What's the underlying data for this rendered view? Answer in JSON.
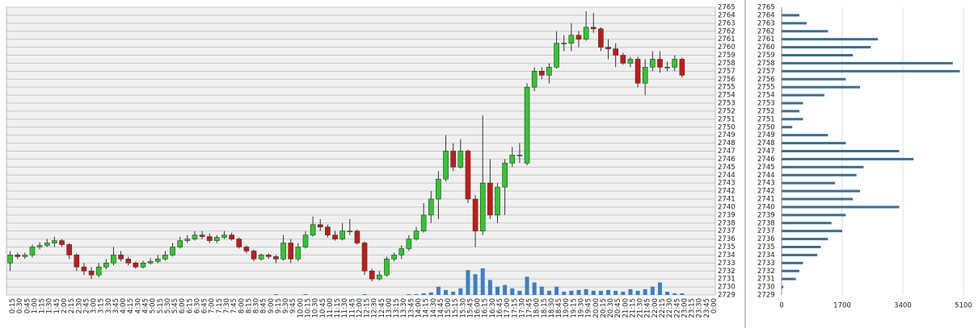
{
  "chart_data": [
    {
      "type": "candlestick",
      "categories": [
        "0:15",
        "0:30",
        "0:45",
        "1:00",
        "1:15",
        "1:30",
        "1:45",
        "2:00",
        "2:15",
        "2:30",
        "2:45",
        "3:00",
        "3:15",
        "3:30",
        "3:45",
        "4:00",
        "4:15",
        "4:30",
        "4:45",
        "5:00",
        "5:15",
        "5:30",
        "5:45",
        "6:00",
        "6:15",
        "6:30",
        "6:45",
        "7:00",
        "7:15",
        "7:30",
        "7:45",
        "8:00",
        "8:15",
        "8:30",
        "8:45",
        "9:00",
        "9:15",
        "9:30",
        "9:45",
        "10:00",
        "10:15",
        "10:30",
        "10:45",
        "11:00",
        "11:15",
        "11:30",
        "11:45",
        "12:00",
        "12:15",
        "12:30",
        "12:45",
        "13:00",
        "13:15",
        "13:30",
        "13:45",
        "14:00",
        "14:15",
        "14:30",
        "14:45",
        "15:00",
        "15:15",
        "15:30",
        "15:45",
        "16:00",
        "16:15",
        "16:30",
        "16:45",
        "17:00",
        "17:15",
        "17:30",
        "17:45",
        "18:00",
        "18:15",
        "18:30",
        "18:45",
        "19:00",
        "19:15",
        "19:30",
        "19:45",
        "20:00",
        "20:15",
        "20:30",
        "20:45",
        "21:00",
        "21:15",
        "21:30",
        "21:45",
        "22:00",
        "22:15",
        "22:30",
        "22:45",
        "23:00",
        "23:15",
        "23:30",
        "23:45",
        "0:00"
      ],
      "open": [
        2733,
        2734,
        2733.8,
        2734,
        2735,
        2735.2,
        2735.5,
        2735.8,
        2735.3,
        2734,
        2732.5,
        2732,
        2731.5,
        2732.5,
        2733,
        2734,
        2733.5,
        2733,
        2732.5,
        2733,
        2733.2,
        2733.5,
        2734,
        2735,
        2735.8,
        2736,
        2736.5,
        2736.3,
        2735.8,
        2736.2,
        2736.5,
        2736,
        2735,
        2734.5,
        2733.5,
        2734,
        2733.8,
        2733.5,
        2735.5,
        2733.5,
        2735,
        2736.5,
        2737.8,
        2737.5,
        2736.5,
        2736,
        2737,
        2737,
        2735.5,
        2732,
        2731,
        2731.5,
        2733.5,
        2734,
        2734.8,
        2736,
        2737,
        2739,
        2741,
        2743.5,
        2747,
        2745,
        2747,
        2741,
        2737,
        2743,
        2739,
        2742.5,
        2745.5,
        2746.5,
        2745.5,
        2755,
        2757,
        2756.5,
        2757.5,
        2760.5,
        2760.5,
        2761.5,
        2761,
        2762.5,
        2762.3,
        2760,
        2759.8,
        2759,
        2758,
        2758.5,
        2755.5,
        2757.5,
        2758.5,
        2757.5,
        2757.5,
        2758.5,
        null,
        null,
        null,
        null
      ],
      "high": [
        2734.5,
        2734.3,
        2734.3,
        2735.3,
        2735.6,
        2736,
        2736.3,
        2736,
        2735.5,
        2734.2,
        2733,
        2732.5,
        2733,
        2733.5,
        2735,
        2734.5,
        2733.8,
        2733.2,
        2733.3,
        2733.6,
        2734,
        2734.5,
        2735.5,
        2736.3,
        2736.5,
        2737,
        2737,
        2736.7,
        2736.5,
        2737,
        2736.8,
        2736.2,
        2735.2,
        2734.7,
        2734.2,
        2734.2,
        2734,
        2736.5,
        2736,
        2735.5,
        2737,
        2738.8,
        2738.5,
        2737.8,
        2737,
        2738,
        2738.5,
        2737.2,
        2735.7,
        2732.3,
        2732,
        2733.8,
        2734.3,
        2735.2,
        2736.5,
        2737.5,
        2740.5,
        2742,
        2744.5,
        2749,
        2748,
        2748.5,
        2747.2,
        2741.5,
        2751.5,
        2746,
        2743,
        2746,
        2747.5,
        2748,
        2755.5,
        2757.5,
        2757.5,
        2758,
        2762,
        2761.5,
        2763,
        2762,
        2764.5,
        2764.3,
        2762.5,
        2761,
        2760.5,
        2759.3,
        2758.8,
        2758.8,
        2758.5,
        2759.5,
        2759.5,
        2758.2,
        2759,
        2758.7,
        null,
        null,
        null,
        null
      ],
      "low": [
        2732,
        2733.5,
        2733.5,
        2733.7,
        2734.7,
        2735,
        2735,
        2735,
        2733.5,
        2732,
        2731.5,
        2731,
        2731.2,
        2732.2,
        2732.7,
        2733.2,
        2732.7,
        2732.3,
        2732.3,
        2732.8,
        2733,
        2733.3,
        2733.8,
        2734.8,
        2735.5,
        2735.8,
        2736,
        2735.5,
        2735.5,
        2736,
        2735.8,
        2734.8,
        2734.2,
        2733.2,
        2733.3,
        2733.5,
        2733,
        2733.3,
        2733,
        2733.2,
        2734.8,
        2736.3,
        2737,
        2736.2,
        2735.8,
        2735.8,
        2736.5,
        2735.3,
        2731.5,
        2730.7,
        2730.8,
        2731.3,
        2733.2,
        2733.5,
        2734.5,
        2735.8,
        2736.8,
        2738,
        2738.5,
        2743.2,
        2744.5,
        2744.8,
        2740.5,
        2735,
        2736.5,
        2738.5,
        2738,
        2739,
        2745,
        2745.5,
        2745.2,
        2754.5,
        2756,
        2755.5,
        2757.3,
        2759.5,
        2759.5,
        2760,
        2760.8,
        2761.8,
        2759.5,
        2758.5,
        2757.5,
        2757.8,
        2757.5,
        2755,
        2754,
        2757,
        2756.8,
        2757,
        2757,
        2756.2,
        null,
        null,
        null,
        null
      ],
      "close": [
        2734,
        2733.8,
        2734,
        2735,
        2735.2,
        2735.5,
        2735.8,
        2735.3,
        2734,
        2732.5,
        2732,
        2731.5,
        2732.5,
        2733,
        2734,
        2733.5,
        2733,
        2732.5,
        2733,
        2733.2,
        2733.5,
        2734,
        2735,
        2735.8,
        2736,
        2736.5,
        2736.3,
        2735.8,
        2736.2,
        2736.5,
        2736,
        2735,
        2734.5,
        2733.5,
        2734,
        2733.8,
        2733.5,
        2735.5,
        2733.5,
        2735,
        2736.5,
        2737.8,
        2737.5,
        2736.5,
        2736,
        2737,
        2737,
        2735.5,
        2732,
        2731,
        2731.5,
        2733.5,
        2734,
        2734.8,
        2736,
        2737,
        2739,
        2741,
        2743.5,
        2747,
        2745,
        2747,
        2741,
        2737,
        2743,
        2739,
        2742.5,
        2745.5,
        2746.5,
        2746.5,
        2755,
        2757,
        2756.5,
        2757.5,
        2760.5,
        2760.5,
        2761.5,
        2761,
        2762.5,
        2762.3,
        2760,
        2759.8,
        2759,
        2758,
        2758.5,
        2755.5,
        2757.5,
        2758.5,
        2757.5,
        2757.5,
        2758.5,
        2756.5,
        null,
        null,
        null,
        null
      ],
      "volume": [
        0,
        0,
        0,
        0,
        0,
        0,
        0,
        0,
        0,
        0,
        0,
        0,
        0,
        0,
        0,
        0,
        0,
        0,
        0,
        0,
        0,
        0,
        0,
        0,
        0,
        0,
        0,
        0,
        0,
        0,
        0,
        0,
        0,
        0,
        0,
        0,
        1,
        0,
        0,
        0,
        1,
        0,
        0,
        0,
        0,
        0,
        0,
        0,
        1,
        0,
        0,
        0,
        0,
        0,
        1,
        1,
        2,
        3,
        10,
        6,
        4,
        8,
        30,
        25,
        32,
        18,
        10,
        12,
        8,
        5,
        22,
        15,
        10,
        5,
        10,
        4,
        5,
        6,
        7,
        5,
        5,
        6,
        5,
        4,
        7,
        5,
        7,
        10,
        15,
        4,
        2,
        2,
        null,
        null,
        null,
        null
      ],
      "up_color": "#2ec92e",
      "down_color": "#c81818",
      "volume_color": "#3d7fc1",
      "ylim": [
        2729,
        2765
      ],
      "yticks": [
        2729,
        2730,
        2731,
        2732,
        2733,
        2734,
        2735,
        2736,
        2737,
        2738,
        2739,
        2740,
        2741,
        2742,
        2743,
        2744,
        2745,
        2746,
        2747,
        2748,
        2749,
        2750,
        2751,
        2752,
        2753,
        2754,
        2755,
        2756,
        2757,
        2758,
        2759,
        2760,
        2761,
        2762,
        2763,
        2764,
        2765
      ],
      "grid": true
    },
    {
      "type": "hbar",
      "categories": [
        2730,
        2731,
        2732,
        2733,
        2734,
        2735,
        2736,
        2737,
        2738,
        2739,
        2740,
        2741,
        2742,
        2743,
        2744,
        2745,
        2746,
        2747,
        2748,
        2749,
        2750,
        2751,
        2752,
        2753,
        2754,
        2755,
        2756,
        2757,
        2758,
        2759,
        2760,
        2761,
        2762,
        2763,
        2764
      ],
      "values": [
        50,
        400,
        500,
        600,
        1000,
        1100,
        1300,
        1700,
        1400,
        1800,
        3300,
        2000,
        2200,
        1500,
        2100,
        2300,
        3700,
        3300,
        1800,
        1300,
        300,
        600,
        500,
        600,
        1200,
        2200,
        1800,
        5000,
        4800,
        2000,
        2500,
        2700,
        1300,
        700,
        500
      ],
      "color": "#3a6f95",
      "xlim": [
        0,
        5100
      ],
      "xticks": [
        0,
        1700,
        3400,
        5100
      ],
      "ylim": [
        2729,
        2765
      ],
      "yticks": [
        2729,
        2730,
        2731,
        2732,
        2733,
        2734,
        2735,
        2736,
        2737,
        2738,
        2739,
        2740,
        2741,
        2742,
        2743,
        2744,
        2745,
        2746,
        2747,
        2748,
        2749,
        2750,
        2751,
        2752,
        2753,
        2754,
        2755,
        2756,
        2757,
        2758,
        2759,
        2760,
        2761,
        2762,
        2763,
        2764,
        2765
      ],
      "grid": true
    }
  ]
}
